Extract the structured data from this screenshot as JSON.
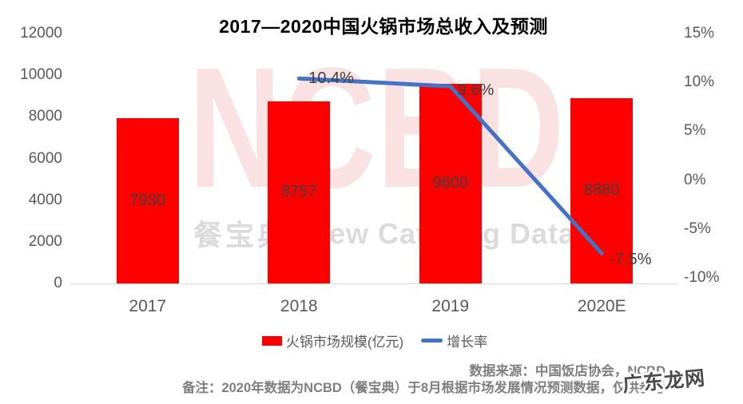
{
  "title": "2017—2020中国火锅市场总收入及预测",
  "chart_data": {
    "type": "bar",
    "subtype": "bar-line-combo",
    "categories": [
      "2017",
      "2018",
      "2019",
      "2020E"
    ],
    "series": [
      {
        "name": "火锅市场规模(亿元)",
        "type": "bar",
        "values": [
          7930,
          8757,
          9600,
          8880
        ],
        "data_labels": [
          "7930",
          "8757",
          "9600",
          "8880"
        ],
        "color": "#fe0000",
        "axis": "left"
      },
      {
        "name": "增长率",
        "type": "line",
        "values": [
          null,
          10.4,
          9.6,
          -7.5
        ],
        "data_labels": [
          "10.4%",
          "9.6%",
          "-7.5%"
        ],
        "color": "#4472c4",
        "axis": "right"
      }
    ],
    "left_axis": {
      "ticks": [
        "12000",
        "10000",
        "8000",
        "6000",
        "4000",
        "2000",
        "0"
      ],
      "min": 0,
      "max": 12000
    },
    "right_axis": {
      "ticks": [
        "15%",
        "10%",
        "5%",
        "0%",
        "-5%",
        "-10%"
      ],
      "min": -10,
      "max": 15
    },
    "grid": false,
    "legend_position": "bottom",
    "title": "2017—2020中国火锅市场总收入及预测"
  },
  "legend": {
    "bar_label": "火锅市场规模(亿元)",
    "line_label": "增长率"
  },
  "watermark": {
    "big": "NCBD",
    "cn": "餐宝典",
    "en": "New Catering Data"
  },
  "footer": {
    "source": "数据来源：中国饭店协会，NCBD",
    "note": "备注：2020年数据为NCBD（餐宝典）于8月根据市场发展情况预测数据，仅供参考"
  },
  "stamp": "广东龙网",
  "colors": {
    "bar": "#fe0000",
    "line": "#4472c4",
    "axis_text": "#595959",
    "data_label_text": "#404040",
    "footer_text": "#7f7f7f",
    "watermark_pink": "#fbe2e2",
    "watermark_gray": "#dbdbdb",
    "axis_line": "#d9d9d9"
  }
}
